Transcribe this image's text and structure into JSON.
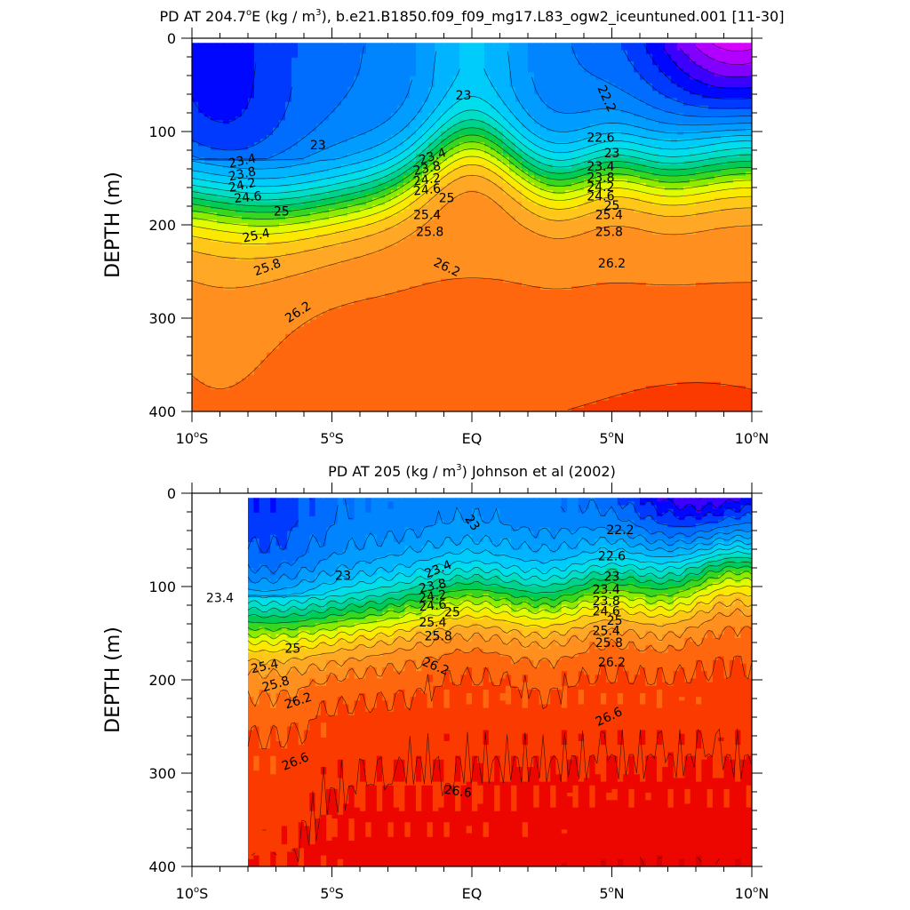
{
  "chart_data": [
    {
      "type": "heatmap",
      "title_main": "PD AT 204.7",
      "title_deg": "o",
      "title_after_deg": "E (kg / m",
      "title_sup": "3",
      "title_tail": "), b.e21.B1850.f09_f09_mg17.L83_ogw2_iceuntuned.001 [11-30]",
      "ylabel": "DEPTH (m)",
      "xlim": [
        -10,
        10
      ],
      "ylim": [
        400,
        0
      ],
      "x_ticks": [
        {
          "v": -10,
          "num": "10",
          "deg": "o",
          "hemi": "S"
        },
        {
          "v": -5,
          "num": "5",
          "deg": "o",
          "hemi": "S"
        },
        {
          "v": 0,
          "num": "EQ",
          "deg": "",
          "hemi": ""
        },
        {
          "v": 5,
          "num": "5",
          "deg": "o",
          "hemi": "N"
        },
        {
          "v": 10,
          "num": "10",
          "deg": "o",
          "hemi": "N"
        }
      ],
      "y_ticks": [
        {
          "v": 0,
          "label": "0"
        },
        {
          "v": 100,
          "label": "100"
        },
        {
          "v": 200,
          "label": "200"
        },
        {
          "v": 300,
          "label": "300"
        },
        {
          "v": 400,
          "label": "400"
        }
      ],
      "data_x_range": [
        -10,
        10
      ],
      "contour_levels": [
        21.6,
        21.8,
        22.0,
        22.2,
        22.4,
        22.6,
        22.8,
        23.0,
        23.2,
        23.4,
        23.6,
        23.8,
        24.0,
        24.2,
        24.4,
        24.6,
        24.8,
        25.0,
        25.2,
        25.4,
        25.6,
        25.8,
        26.0,
        26.2,
        26.4,
        26.6,
        26.8
      ],
      "contour_labels": [
        {
          "text": "23",
          "x": -5.5,
          "y": 115,
          "rot": 0
        },
        {
          "text": "23",
          "x": -0.3,
          "y": 62,
          "rot": 0
        },
        {
          "text": "22.2",
          "x": 4.8,
          "y": 65,
          "rot": 65
        },
        {
          "text": "22.6",
          "x": 4.6,
          "y": 107,
          "rot": 0
        },
        {
          "text": "23.4",
          "x": -8.2,
          "y": 132,
          "rot": -12
        },
        {
          "text": "23.8",
          "x": -8.2,
          "y": 146,
          "rot": -12
        },
        {
          "text": "24.2",
          "x": -8.2,
          "y": 158,
          "rot": -12
        },
        {
          "text": "24.6",
          "x": -8.0,
          "y": 171,
          "rot": -6
        },
        {
          "text": "25",
          "x": -6.8,
          "y": 186,
          "rot": 0
        },
        {
          "text": "25.4",
          "x": -7.7,
          "y": 212,
          "rot": -12
        },
        {
          "text": "25.8",
          "x": -7.3,
          "y": 246,
          "rot": -20
        },
        {
          "text": "26.2",
          "x": -6.2,
          "y": 294,
          "rot": -33
        },
        {
          "text": "23.4",
          "x": -1.4,
          "y": 127,
          "rot": -18
        },
        {
          "text": "23.8",
          "x": -1.6,
          "y": 140,
          "rot": -12
        },
        {
          "text": "24.2",
          "x": -1.6,
          "y": 152,
          "rot": -8
        },
        {
          "text": "24.6",
          "x": -1.6,
          "y": 163,
          "rot": -6
        },
        {
          "text": "25",
          "x": -0.9,
          "y": 172,
          "rot": 0
        },
        {
          "text": "25.4",
          "x": -1.6,
          "y": 190,
          "rot": 0
        },
        {
          "text": "25.8",
          "x": -1.5,
          "y": 208,
          "rot": 0
        },
        {
          "text": "26.2",
          "x": -0.9,
          "y": 246,
          "rot": 25
        },
        {
          "text": "23",
          "x": 5.0,
          "y": 124,
          "rot": 0
        },
        {
          "text": "23.4",
          "x": 4.6,
          "y": 138,
          "rot": 0
        },
        {
          "text": "23.8",
          "x": 4.6,
          "y": 150,
          "rot": 0
        },
        {
          "text": "24.2",
          "x": 4.6,
          "y": 160,
          "rot": 0
        },
        {
          "text": "24.6",
          "x": 4.6,
          "y": 170,
          "rot": 0
        },
        {
          "text": "25",
          "x": 5.0,
          "y": 180,
          "rot": 0
        },
        {
          "text": "25.4",
          "x": 4.9,
          "y": 190,
          "rot": 0
        },
        {
          "text": "25.8",
          "x": 4.9,
          "y": 208,
          "rot": 0
        },
        {
          "text": "26.2",
          "x": 5.0,
          "y": 242,
          "rot": 0
        }
      ]
    },
    {
      "type": "heatmap",
      "title_main": "PD AT 205 (kg / m",
      "title_deg": "",
      "title_after_deg": "",
      "title_sup": "3",
      "title_tail": ") Johnson et al (2002)",
      "ylabel": "DEPTH (m)",
      "xlim": [
        -10,
        10
      ],
      "ylim": [
        400,
        0
      ],
      "x_ticks": [
        {
          "v": -10,
          "num": "10",
          "deg": "o",
          "hemi": "S"
        },
        {
          "v": -5,
          "num": "5",
          "deg": "o",
          "hemi": "S"
        },
        {
          "v": 0,
          "num": "EQ",
          "deg": "",
          "hemi": ""
        },
        {
          "v": 5,
          "num": "5",
          "deg": "o",
          "hemi": "N"
        },
        {
          "v": 10,
          "num": "10",
          "deg": "o",
          "hemi": "N"
        }
      ],
      "y_ticks": [
        {
          "v": 0,
          "label": "0"
        },
        {
          "v": 100,
          "label": "100"
        },
        {
          "v": 200,
          "label": "200"
        },
        {
          "v": 300,
          "label": "300"
        },
        {
          "v": 400,
          "label": "400"
        }
      ],
      "data_x_range": [
        -8,
        10
      ],
      "contour_levels": [
        21.6,
        21.8,
        22.0,
        22.2,
        22.4,
        22.6,
        22.8,
        23.0,
        23.2,
        23.4,
        23.6,
        23.8,
        24.0,
        24.2,
        24.4,
        24.6,
        24.8,
        25.0,
        25.2,
        25.4,
        25.6,
        25.8,
        26.0,
        26.2,
        26.4,
        26.6,
        26.8
      ],
      "contour_labels": [
        {
          "text": "23",
          "x": 0.0,
          "y": 32,
          "rot": 55
        },
        {
          "text": "22.2",
          "x": 5.3,
          "y": 40,
          "rot": 0
        },
        {
          "text": "22.6",
          "x": 5.0,
          "y": 68,
          "rot": 0
        },
        {
          "text": "23",
          "x": -4.6,
          "y": 89,
          "rot": 0
        },
        {
          "text": "23",
          "x": 5.0,
          "y": 90,
          "rot": 0
        },
        {
          "text": "23.4",
          "x": -9.0,
          "y": 113,
          "rot": 0
        },
        {
          "text": "23.4",
          "x": -1.2,
          "y": 82,
          "rot": -22
        },
        {
          "text": "23.8",
          "x": -1.4,
          "y": 100,
          "rot": -12
        },
        {
          "text": "24.2",
          "x": -1.4,
          "y": 111,
          "rot": -8
        },
        {
          "text": "24.6",
          "x": -1.4,
          "y": 121,
          "rot": -6
        },
        {
          "text": "25",
          "x": -0.7,
          "y": 128,
          "rot": 0
        },
        {
          "text": "25.4",
          "x": -1.4,
          "y": 139,
          "rot": 0
        },
        {
          "text": "25.8",
          "x": -1.2,
          "y": 154,
          "rot": 0
        },
        {
          "text": "23.4",
          "x": 4.8,
          "y": 104,
          "rot": 0
        },
        {
          "text": "23.8",
          "x": 4.8,
          "y": 116,
          "rot": 0
        },
        {
          "text": "24.6",
          "x": 4.8,
          "y": 127,
          "rot": 0
        },
        {
          "text": "25",
          "x": 5.1,
          "y": 137,
          "rot": 0
        },
        {
          "text": "25.4",
          "x": 4.8,
          "y": 148,
          "rot": 0
        },
        {
          "text": "25.8",
          "x": 4.9,
          "y": 161,
          "rot": 0
        },
        {
          "text": "26.2",
          "x": 5.0,
          "y": 182,
          "rot": 0
        },
        {
          "text": "25",
          "x": -6.4,
          "y": 167,
          "rot": 0
        },
        {
          "text": "25.4",
          "x": -7.4,
          "y": 186,
          "rot": -12
        },
        {
          "text": "25.8",
          "x": -7.0,
          "y": 205,
          "rot": -16
        },
        {
          "text": "26.2",
          "x": -6.2,
          "y": 223,
          "rot": -18
        },
        {
          "text": "26.2",
          "x": -1.3,
          "y": 186,
          "rot": 22
        },
        {
          "text": "26.6",
          "x": -6.3,
          "y": 288,
          "rot": -22
        },
        {
          "text": "26.6",
          "x": -0.5,
          "y": 320,
          "rot": 8
        },
        {
          "text": "26.6",
          "x": 4.9,
          "y": 240,
          "rot": -25
        }
      ]
    }
  ]
}
